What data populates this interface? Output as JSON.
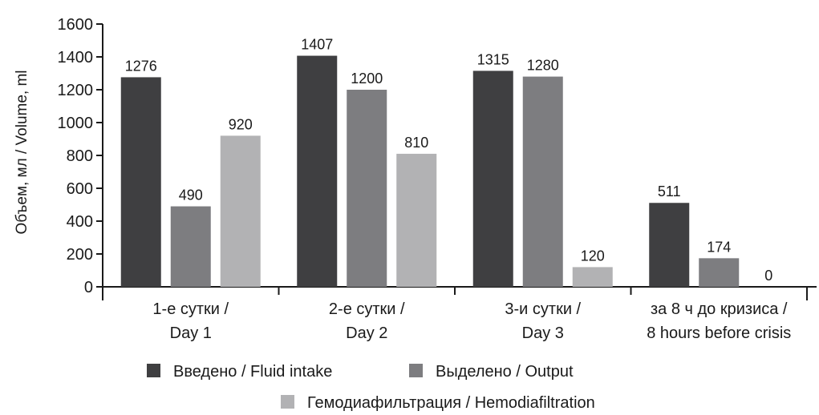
{
  "chart_data": {
    "type": "bar",
    "title": "",
    "xlabel": "",
    "ylabel": "Объем, мл / Volume, ml",
    "ylim": [
      0,
      1600
    ],
    "yticks": [
      0,
      200,
      400,
      600,
      800,
      1000,
      1200,
      1400,
      1600
    ],
    "grid": false,
    "legend_position": "bottom",
    "categories": [
      [
        "1-е сутки /",
        "Day 1"
      ],
      [
        "2-е сутки /",
        "Day 2"
      ],
      [
        "3-и сутки /",
        "Day 3"
      ],
      [
        "за 8 ч до кризиса /",
        "8 hours before crisis"
      ]
    ],
    "series": [
      {
        "name": "Введено / Fluid intake",
        "color": "#3f3f41",
        "values": [
          1276,
          1407,
          1315,
          511
        ]
      },
      {
        "name": "Выделено / Output",
        "color": "#7d7d80",
        "values": [
          490,
          1200,
          1280,
          174
        ]
      },
      {
        "name": "Гемодиафильтрация / Hemodiafiltration",
        "color": "#b2b2b4",
        "values": [
          920,
          810,
          120,
          0
        ]
      }
    ]
  }
}
